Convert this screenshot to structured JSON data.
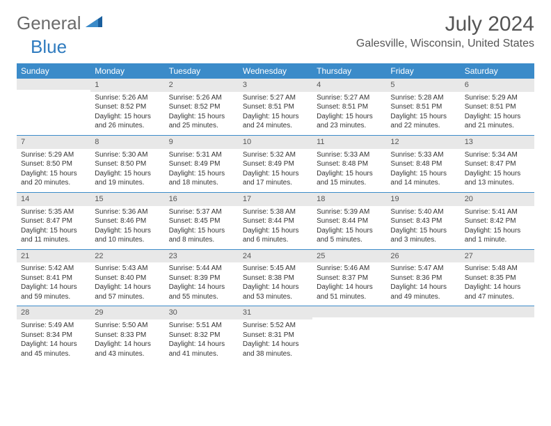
{
  "logo": {
    "part1": "General",
    "part2": "Blue"
  },
  "title": "July 2024",
  "location": "Galesville, Wisconsin, United States",
  "colors": {
    "header_bg": "#3b8bc9",
    "daynum_bg": "#e8e8e8",
    "divider": "#3b8bc9",
    "logo_gray": "#6b6b6b",
    "logo_blue": "#2f7bbf"
  },
  "weekdays": [
    "Sunday",
    "Monday",
    "Tuesday",
    "Wednesday",
    "Thursday",
    "Friday",
    "Saturday"
  ],
  "weeks": [
    [
      {
        "n": "",
        "sr": "",
        "ss": "",
        "dl": ""
      },
      {
        "n": "1",
        "sr": "5:26 AM",
        "ss": "8:52 PM",
        "dl": "15 hours and 26 minutes."
      },
      {
        "n": "2",
        "sr": "5:26 AM",
        "ss": "8:52 PM",
        "dl": "15 hours and 25 minutes."
      },
      {
        "n": "3",
        "sr": "5:27 AM",
        "ss": "8:51 PM",
        "dl": "15 hours and 24 minutes."
      },
      {
        "n": "4",
        "sr": "5:27 AM",
        "ss": "8:51 PM",
        "dl": "15 hours and 23 minutes."
      },
      {
        "n": "5",
        "sr": "5:28 AM",
        "ss": "8:51 PM",
        "dl": "15 hours and 22 minutes."
      },
      {
        "n": "6",
        "sr": "5:29 AM",
        "ss": "8:51 PM",
        "dl": "15 hours and 21 minutes."
      }
    ],
    [
      {
        "n": "7",
        "sr": "5:29 AM",
        "ss": "8:50 PM",
        "dl": "15 hours and 20 minutes."
      },
      {
        "n": "8",
        "sr": "5:30 AM",
        "ss": "8:50 PM",
        "dl": "15 hours and 19 minutes."
      },
      {
        "n": "9",
        "sr": "5:31 AM",
        "ss": "8:49 PM",
        "dl": "15 hours and 18 minutes."
      },
      {
        "n": "10",
        "sr": "5:32 AM",
        "ss": "8:49 PM",
        "dl": "15 hours and 17 minutes."
      },
      {
        "n": "11",
        "sr": "5:33 AM",
        "ss": "8:48 PM",
        "dl": "15 hours and 15 minutes."
      },
      {
        "n": "12",
        "sr": "5:33 AM",
        "ss": "8:48 PM",
        "dl": "15 hours and 14 minutes."
      },
      {
        "n": "13",
        "sr": "5:34 AM",
        "ss": "8:47 PM",
        "dl": "15 hours and 13 minutes."
      }
    ],
    [
      {
        "n": "14",
        "sr": "5:35 AM",
        "ss": "8:47 PM",
        "dl": "15 hours and 11 minutes."
      },
      {
        "n": "15",
        "sr": "5:36 AM",
        "ss": "8:46 PM",
        "dl": "15 hours and 10 minutes."
      },
      {
        "n": "16",
        "sr": "5:37 AM",
        "ss": "8:45 PM",
        "dl": "15 hours and 8 minutes."
      },
      {
        "n": "17",
        "sr": "5:38 AM",
        "ss": "8:44 PM",
        "dl": "15 hours and 6 minutes."
      },
      {
        "n": "18",
        "sr": "5:39 AM",
        "ss": "8:44 PM",
        "dl": "15 hours and 5 minutes."
      },
      {
        "n": "19",
        "sr": "5:40 AM",
        "ss": "8:43 PM",
        "dl": "15 hours and 3 minutes."
      },
      {
        "n": "20",
        "sr": "5:41 AM",
        "ss": "8:42 PM",
        "dl": "15 hours and 1 minute."
      }
    ],
    [
      {
        "n": "21",
        "sr": "5:42 AM",
        "ss": "8:41 PM",
        "dl": "14 hours and 59 minutes."
      },
      {
        "n": "22",
        "sr": "5:43 AM",
        "ss": "8:40 PM",
        "dl": "14 hours and 57 minutes."
      },
      {
        "n": "23",
        "sr": "5:44 AM",
        "ss": "8:39 PM",
        "dl": "14 hours and 55 minutes."
      },
      {
        "n": "24",
        "sr": "5:45 AM",
        "ss": "8:38 PM",
        "dl": "14 hours and 53 minutes."
      },
      {
        "n": "25",
        "sr": "5:46 AM",
        "ss": "8:37 PM",
        "dl": "14 hours and 51 minutes."
      },
      {
        "n": "26",
        "sr": "5:47 AM",
        "ss": "8:36 PM",
        "dl": "14 hours and 49 minutes."
      },
      {
        "n": "27",
        "sr": "5:48 AM",
        "ss": "8:35 PM",
        "dl": "14 hours and 47 minutes."
      }
    ],
    [
      {
        "n": "28",
        "sr": "5:49 AM",
        "ss": "8:34 PM",
        "dl": "14 hours and 45 minutes."
      },
      {
        "n": "29",
        "sr": "5:50 AM",
        "ss": "8:33 PM",
        "dl": "14 hours and 43 minutes."
      },
      {
        "n": "30",
        "sr": "5:51 AM",
        "ss": "8:32 PM",
        "dl": "14 hours and 41 minutes."
      },
      {
        "n": "31",
        "sr": "5:52 AM",
        "ss": "8:31 PM",
        "dl": "14 hours and 38 minutes."
      },
      {
        "n": "",
        "sr": "",
        "ss": "",
        "dl": ""
      },
      {
        "n": "",
        "sr": "",
        "ss": "",
        "dl": ""
      },
      {
        "n": "",
        "sr": "",
        "ss": "",
        "dl": ""
      }
    ]
  ],
  "labels": {
    "sunrise": "Sunrise:",
    "sunset": "Sunset:",
    "daylight": "Daylight:"
  }
}
